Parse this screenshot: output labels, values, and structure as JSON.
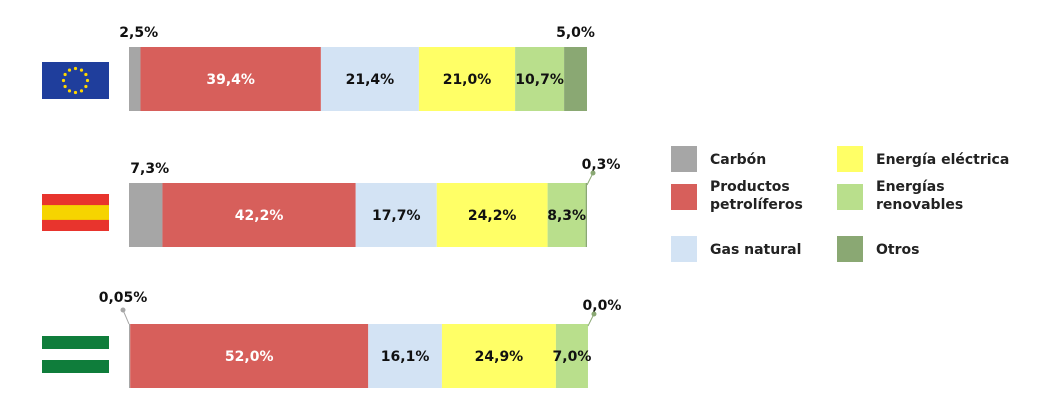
{
  "chart_data": {
    "type": "bar",
    "stacked": true,
    "orientation": "horizontal",
    "unit": "%",
    "categories": [
      "Unión Europea",
      "España",
      "Andalucía"
    ],
    "series": [
      {
        "name": "Carbón",
        "color": "#a6a6a6",
        "values": [
          2.5,
          7.3,
          0.05
        ],
        "labels": [
          "2,5%",
          "7,3%",
          "0,05%"
        ]
      },
      {
        "name": "Productos petrolíferos",
        "color": "#d75f5b",
        "values": [
          39.4,
          42.2,
          52.0
        ],
        "labels": [
          "39,4%",
          "42,2%",
          "52,0%"
        ]
      },
      {
        "name": "Gas natural",
        "color": "#d3e3f4",
        "values": [
          21.4,
          17.7,
          16.1
        ],
        "labels": [
          "21,4%",
          "17,7%",
          "16,1%"
        ]
      },
      {
        "name": "Energía eléctrica",
        "color": "#ffff66",
        "values": [
          21.0,
          24.2,
          24.9
        ],
        "labels": [
          "21,0%",
          "24,2%",
          "24,9%"
        ]
      },
      {
        "name": "Energías renovables",
        "color": "#b9df8c",
        "values": [
          10.7,
          8.3,
          7.0
        ],
        "labels": [
          "10,7%",
          "8,3%",
          "7,0%"
        ]
      },
      {
        "name": "Otros",
        "color": "#8aa873",
        "values": [
          5.0,
          0.3,
          0.0
        ],
        "labels": [
          "5,0%",
          "0,3%",
          "0,0%"
        ]
      }
    ],
    "legend": {
      "position": "right",
      "items": [
        {
          "lines": [
            "Carbón"
          ],
          "color": "#a6a6a6"
        },
        {
          "lines": [
            "Energía eléctrica"
          ],
          "color": "#ffff66"
        },
        {
          "lines": [
            "Productos",
            "petrolíferos"
          ],
          "color": "#d75f5b"
        },
        {
          "lines": [
            "Energías",
            "renovables"
          ],
          "color": "#b9df8c"
        },
        {
          "lines": [
            "Gas natural"
          ],
          "color": "#d3e3f4"
        },
        {
          "lines": [
            "Otros"
          ],
          "color": "#8aa873"
        }
      ]
    },
    "flags": [
      "eu-flag-icon",
      "spain-flag-icon",
      "andalusia-flag-icon"
    ],
    "grid": false
  }
}
